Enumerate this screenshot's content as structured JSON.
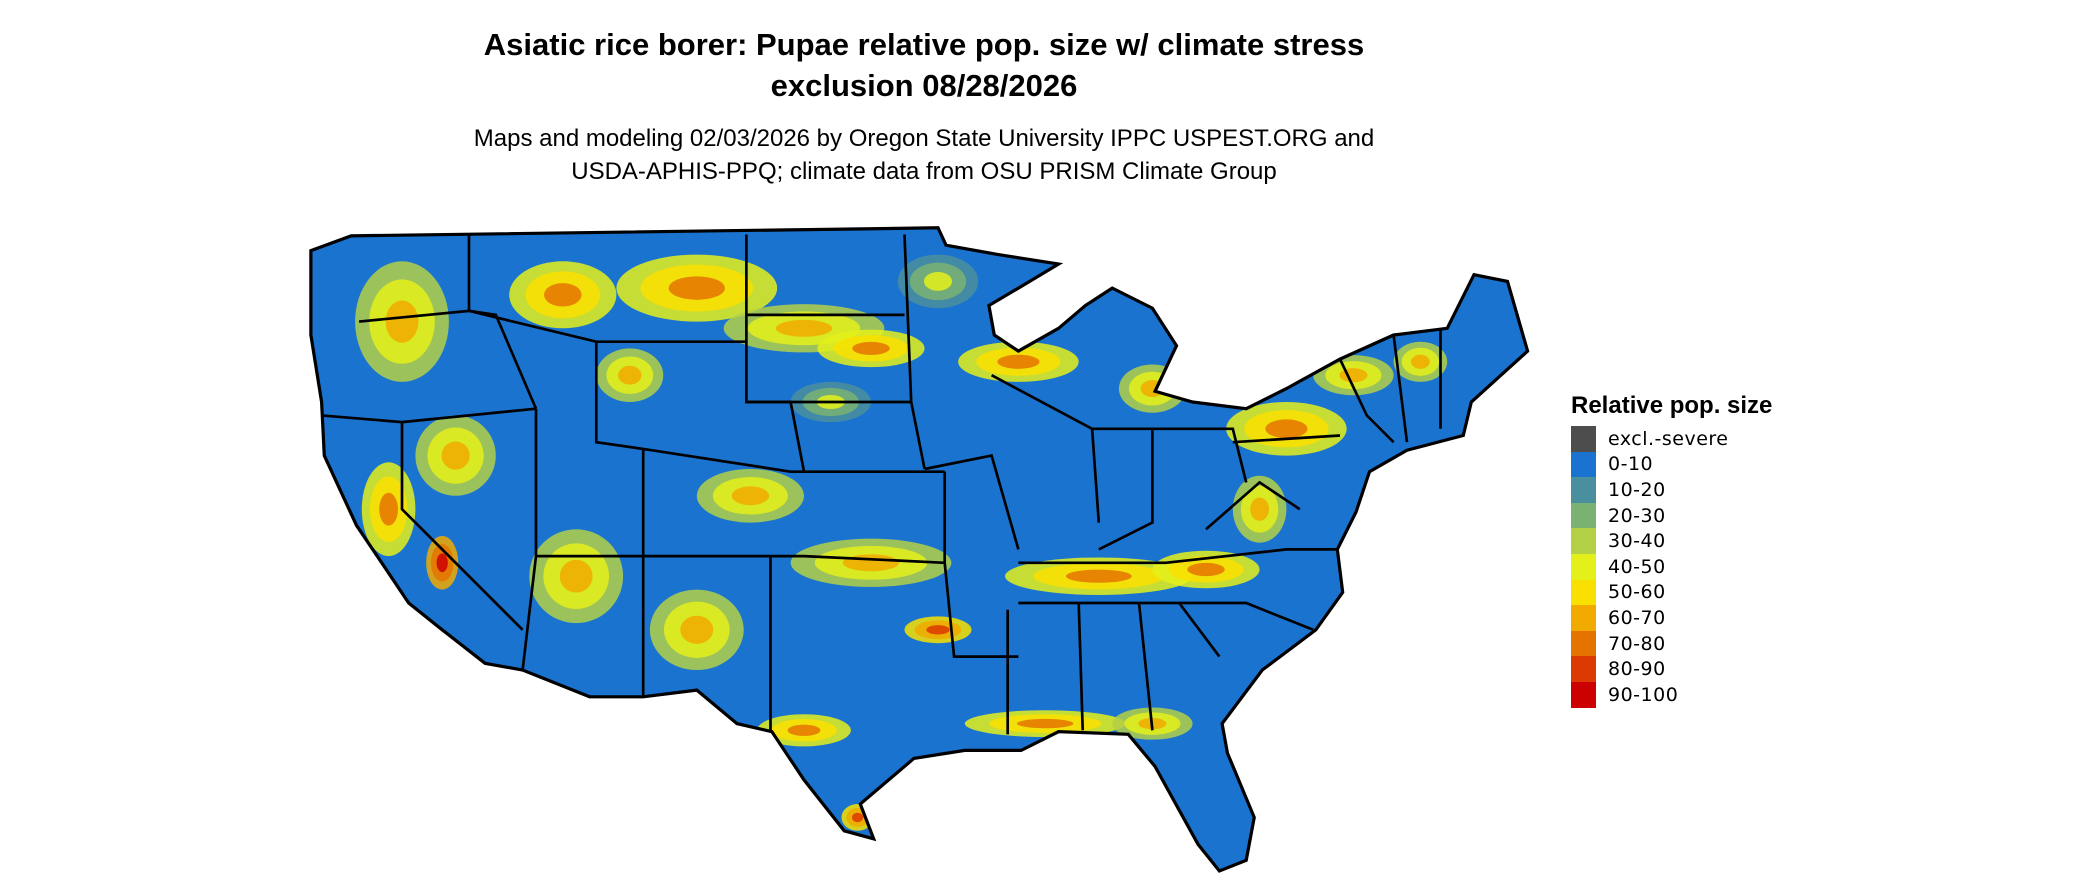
{
  "header": {
    "title_line1": "Asiatic rice borer: Pupae relative pop. size w/ climate stress",
    "title_line2": "exclusion 08/28/2026",
    "subtitle_line1": "Maps and modeling 02/03/2026 by Oregon State University IPPC USPEST.ORG and",
    "subtitle_line2": "USDA-APHIS-PPQ; climate data from OSU PRISM Climate Group"
  },
  "map": {
    "region": "Contiguous United States",
    "dominant_class": "0-10"
  },
  "legend": {
    "title": "Relative pop. size",
    "items": [
      {
        "label": "excl.-severe",
        "color": "#4d4d4d"
      },
      {
        "label": "0-10",
        "color": "#1b73d0"
      },
      {
        "label": "10-20",
        "color": "#4a8f9e"
      },
      {
        "label": "20-30",
        "color": "#7bb173"
      },
      {
        "label": "30-40",
        "color": "#b3d046"
      },
      {
        "label": "40-50",
        "color": "#e4f01a"
      },
      {
        "label": "50-60",
        "color": "#f9e000"
      },
      {
        "label": "60-70",
        "color": "#f0aa00"
      },
      {
        "label": "70-80",
        "color": "#e57300"
      },
      {
        "label": "80-90",
        "color": "#dc3a00"
      },
      {
        "label": "90-100",
        "color": "#cc0000"
      }
    ]
  }
}
